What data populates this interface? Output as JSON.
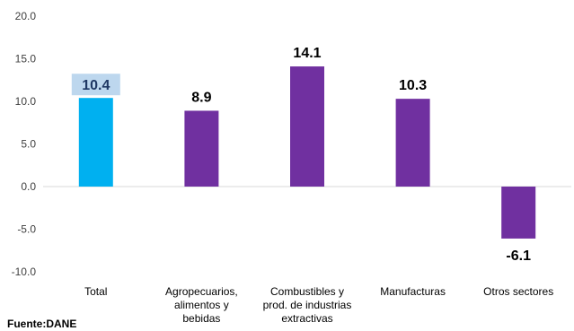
{
  "chart_data": {
    "type": "bar",
    "categories": [
      [
        "Total"
      ],
      [
        "Agropecuarios,",
        "alimentos y",
        "bebidas"
      ],
      [
        "Combustibles y",
        "prod. de industrias",
        "extractivas"
      ],
      [
        "Manufacturas"
      ],
      [
        "Otros sectores"
      ]
    ],
    "values": [
      10.4,
      8.9,
      14.1,
      10.3,
      -6.1
    ],
    "value_labels": [
      "10.4",
      "8.9",
      "14.1",
      "10.3",
      "-6.1"
    ],
    "bar_colors": [
      "#00B0F0",
      "#7030A0",
      "#7030A0",
      "#7030A0",
      "#7030A0"
    ],
    "highlight": {
      "index": 0,
      "label_box_color": "#BDD7EE"
    },
    "ylim": [
      -10,
      20
    ],
    "yticks": [
      "20.0",
      "15.0",
      "10.0",
      "5.0",
      "0.0",
      "-5.0",
      "-10.0"
    ],
    "grid": false,
    "zero_line_color": "#D9D9D9"
  },
  "source_note": "Fuente:DANE"
}
